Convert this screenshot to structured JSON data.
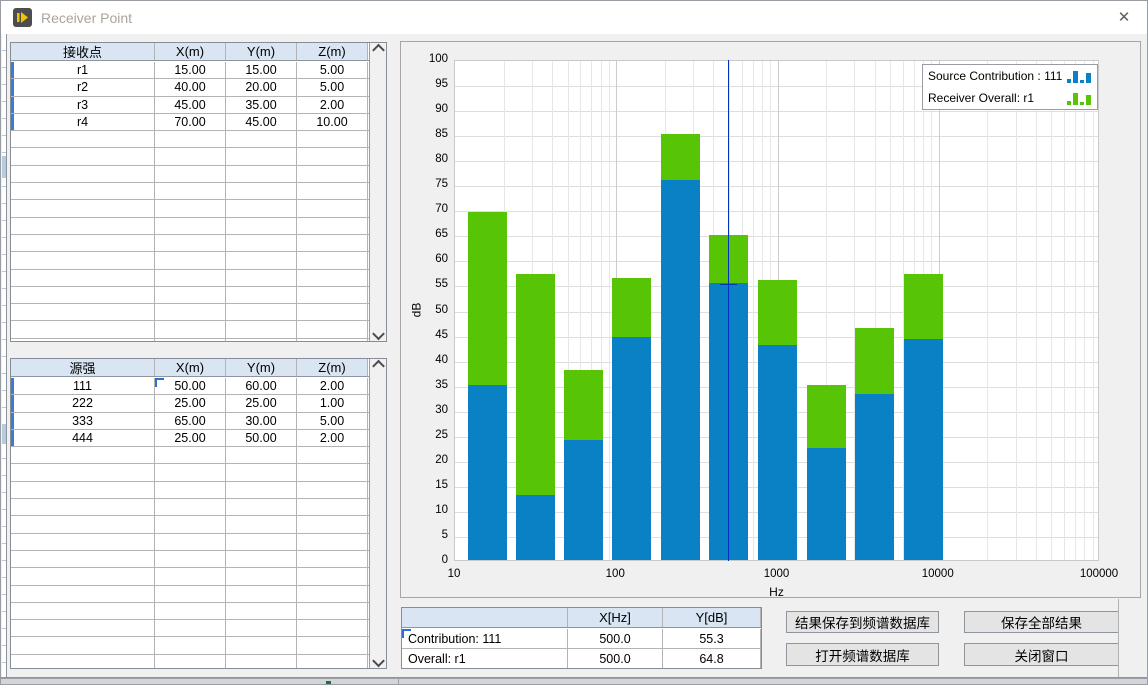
{
  "window": {
    "title": "Receiver Point",
    "close_glyph": "✕"
  },
  "receiver_table": {
    "headers": [
      "接收点",
      "X(m)",
      "Y(m)",
      "Z(m)"
    ],
    "rows": [
      [
        "r1",
        "15.00",
        "15.00",
        "5.00"
      ],
      [
        "r2",
        "40.00",
        "20.00",
        "5.00"
      ],
      [
        "r3",
        "45.00",
        "35.00",
        "2.00"
      ],
      [
        "r4",
        "70.00",
        "45.00",
        "10.00"
      ]
    ]
  },
  "source_table": {
    "headers": [
      "源强",
      "X(m)",
      "Y(m)",
      "Z(m)"
    ],
    "rows": [
      [
        "111",
        "50.00",
        "60.00",
        "2.00"
      ],
      [
        "222",
        "25.00",
        "25.00",
        "1.00"
      ],
      [
        "333",
        "65.00",
        "30.00",
        "5.00"
      ],
      [
        "444",
        "25.00",
        "50.00",
        "2.00"
      ]
    ]
  },
  "chart_data": {
    "type": "bar",
    "x_scale": "log",
    "x": [
      16,
      31.5,
      63,
      125,
      250,
      500,
      1000,
      2000,
      4000,
      8000
    ],
    "series": [
      {
        "name": "Receiver Overall: r1",
        "color": "#57c405",
        "values": [
          69.5,
          57,
          38,
          56.3,
          85,
          64.8,
          55.8,
          35,
          46.3,
          57
        ]
      },
      {
        "name": "Source Contribution : 111",
        "color": "#0a81c4",
        "values": [
          35,
          13,
          24,
          44.5,
          75.8,
          55.3,
          43,
          22.3,
          33.2,
          44.1
        ]
      }
    ],
    "legend_order": [
      "Source Contribution : 111",
      "Receiver Overall: r1"
    ],
    "xlabel": "Hz",
    "ylabel": "dB",
    "xlim": [
      10,
      100000
    ],
    "ylim": [
      0,
      100
    ],
    "y_tick_step": 5,
    "x_ticks": [
      "10",
      "100",
      "1000",
      "10000",
      "100000"
    ],
    "grid": true,
    "legend_position": "top-right",
    "cursor": {
      "x": 500,
      "y": 55.3,
      "color": "#0033bb"
    }
  },
  "info_table": {
    "headers": [
      "",
      "X[Hz]",
      "Y[dB]"
    ],
    "rows": [
      [
        "Contribution: 111",
        "500.0",
        "55.3"
      ],
      [
        "Overall: r1",
        "500.0",
        "64.8"
      ]
    ]
  },
  "buttons": [
    "结果保存到频谱数据库",
    "保存全部结果",
    "打开频谱数据库",
    "关闭窗口"
  ]
}
